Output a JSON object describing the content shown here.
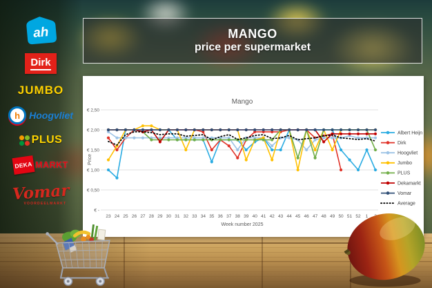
{
  "header": {
    "title_line1": "MANGO",
    "title_line2": "price per supermarket"
  },
  "sidebar": {
    "logos": [
      {
        "id": "albert-heijn",
        "text": "ah",
        "brand_color": "#00a7e1"
      },
      {
        "id": "dirk",
        "text": "Dirk",
        "brand_color": "#e32119"
      },
      {
        "id": "jumbo",
        "text": "JUMBO",
        "brand_color": "#ffd200"
      },
      {
        "id": "hoogvliet",
        "icon_text": "h",
        "text": "Hoogvliet",
        "brand_color": "#0075bf"
      },
      {
        "id": "plus",
        "text": "PLUS",
        "brand_color": "#ffd500"
      },
      {
        "id": "dekamarkt",
        "text_box": "DEKA",
        "text": "MARKT",
        "brand_color": "#e30613"
      },
      {
        "id": "vomar",
        "text": "Vomar",
        "subtext": "VOORDEELMARKT",
        "brand_color": "#d5281e"
      }
    ]
  },
  "chart_data": {
    "type": "line",
    "title": "Mango",
    "xlabel": "Week number 2025",
    "ylabel": "Price",
    "ylim": [
      0,
      2.5
    ],
    "grid": true,
    "legend_position": "right",
    "yticks": [
      {
        "v": 2.5,
        "label": "€ 2,50"
      },
      {
        "v": 2.0,
        "label": "€ 2,00"
      },
      {
        "v": 1.5,
        "label": "€ 1,50"
      },
      {
        "v": 1.0,
        "label": "€ 1,00"
      },
      {
        "v": 0.5,
        "label": "€ 0,50"
      },
      {
        "v": 0.0,
        "label": "€ -"
      }
    ],
    "categories": [
      "23",
      "24",
      "25",
      "26",
      "27",
      "28",
      "29",
      "30",
      "31",
      "32",
      "33",
      "34",
      "35",
      "36",
      "37",
      "38",
      "39",
      "40",
      "41",
      "42",
      "43",
      "44",
      "45",
      "46",
      "47",
      "48",
      "49",
      "50",
      "51",
      "52",
      "1",
      "2"
    ],
    "series": [
      {
        "name": "Albert Heijn",
        "color": "#29abe2",
        "style": "solid",
        "values": [
          1.0,
          0.8,
          2.0,
          2.0,
          2.0,
          2.0,
          2.0,
          2.0,
          1.75,
          1.75,
          1.75,
          1.75,
          1.2,
          1.75,
          1.75,
          1.75,
          1.5,
          1.7,
          1.8,
          1.5,
          1.5,
          2.0,
          2.0,
          2.0,
          2.0,
          2.0,
          2.0,
          1.5,
          1.25,
          1.0,
          1.5,
          1.0
        ]
      },
      {
        "name": "Dirk",
        "color": "#e03127",
        "style": "solid",
        "values": [
          1.8,
          1.5,
          1.8,
          2.0,
          2.0,
          2.0,
          2.0,
          2.0,
          2.0,
          2.0,
          2.0,
          1.95,
          1.5,
          1.75,
          1.6,
          1.3,
          1.75,
          1.95,
          1.95,
          1.95,
          1.95,
          2.0,
          2.0,
          2.0,
          1.8,
          1.85,
          1.9,
          1.0,
          null,
          null,
          null,
          null
        ]
      },
      {
        "name": "Hoogvliet",
        "color": "#9dc3e6",
        "style": "solid",
        "values": [
          1.95,
          1.8,
          1.8,
          1.8,
          1.8,
          1.8,
          1.8,
          1.8,
          1.8,
          1.8,
          1.8,
          1.8,
          1.8,
          1.8,
          1.8,
          1.5,
          1.8,
          1.8,
          1.8,
          1.6,
          1.8,
          1.8,
          1.75,
          1.5,
          1.75,
          1.8,
          1.8,
          1.8,
          1.85,
          1.8,
          1.8,
          1.8
        ]
      },
      {
        "name": "Jumbo",
        "color": "#ffc000",
        "style": "solid",
        "values": [
          1.25,
          1.6,
          2.0,
          2.0,
          2.1,
          2.1,
          2.0,
          2.0,
          2.0,
          1.5,
          2.0,
          2.0,
          2.0,
          2.0,
          2.0,
          2.0,
          1.25,
          1.75,
          1.8,
          1.25,
          2.0,
          2.0,
          1.0,
          2.0,
          1.5,
          2.0,
          1.5,
          2.0,
          2.0,
          2.0,
          2.0,
          2.0
        ]
      },
      {
        "name": "PLUS",
        "color": "#70ad47",
        "style": "solid",
        "values": [
          2.0,
          2.0,
          2.0,
          2.0,
          1.95,
          1.75,
          1.75,
          1.75,
          1.75,
          1.75,
          1.75,
          1.75,
          1.75,
          1.75,
          1.75,
          1.75,
          1.75,
          1.75,
          1.75,
          1.75,
          2.0,
          2.0,
          1.3,
          2.0,
          1.3,
          2.0,
          2.0,
          2.0,
          2.0,
          2.0,
          2.0,
          1.5
        ]
      },
      {
        "name": "Dekamarkt",
        "color": "#c00000",
        "style": "solid",
        "values": [
          2.0,
          2.0,
          2.0,
          2.0,
          1.95,
          2.0,
          1.7,
          2.0,
          2.0,
          2.0,
          2.0,
          2.0,
          2.0,
          2.0,
          2.0,
          2.0,
          2.0,
          2.0,
          2.0,
          2.0,
          2.0,
          2.0,
          2.0,
          2.0,
          2.0,
          1.7,
          1.9,
          1.9,
          1.9,
          1.9,
          1.9,
          1.9
        ]
      },
      {
        "name": "Vomar",
        "color": "#2e4d75",
        "style": "solid",
        "values": [
          2.0,
          2.0,
          2.0,
          2.0,
          2.0,
          2.0,
          2.0,
          2.0,
          2.0,
          2.0,
          2.0,
          2.0,
          2.0,
          2.0,
          2.0,
          2.0,
          2.0,
          2.0,
          2.0,
          2.0,
          2.0,
          2.0,
          2.0,
          2.0,
          2.0,
          2.0,
          2.0,
          2.0,
          2.0,
          2.0,
          2.0,
          2.0
        ]
      },
      {
        "name": "Average",
        "color": "#000000",
        "style": "dotted",
        "values": [
          1.71,
          1.62,
          1.88,
          1.95,
          1.95,
          1.93,
          1.88,
          1.9,
          1.9,
          1.84,
          1.86,
          1.88,
          1.75,
          1.83,
          1.88,
          1.76,
          1.8,
          1.86,
          1.88,
          1.78,
          1.8,
          1.86,
          1.75,
          1.78,
          1.8,
          1.85,
          1.87,
          1.8,
          1.78,
          1.76,
          1.78,
          1.72
        ]
      }
    ]
  }
}
